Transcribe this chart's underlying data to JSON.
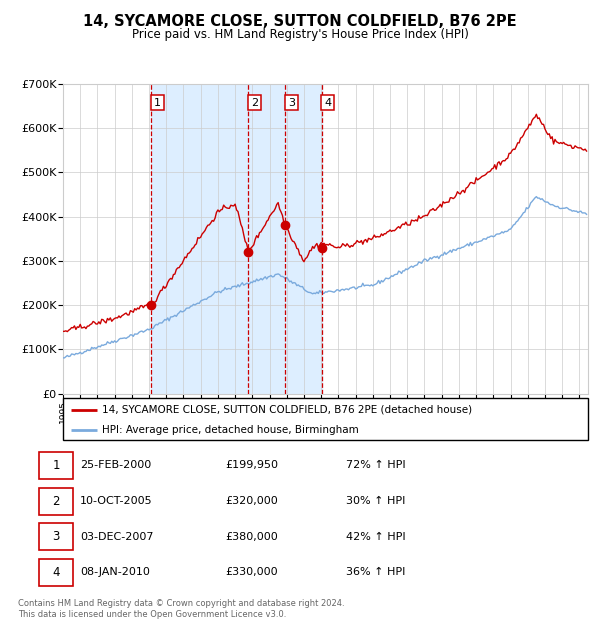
{
  "title": "14, SYCAMORE CLOSE, SUTTON COLDFIELD, B76 2PE",
  "subtitle": "Price paid vs. HM Land Registry's House Price Index (HPI)",
  "legend_label_red": "14, SYCAMORE CLOSE, SUTTON COLDFIELD, B76 2PE (detached house)",
  "legend_label_blue": "HPI: Average price, detached house, Birmingham",
  "footer_line1": "Contains HM Land Registry data © Crown copyright and database right 2024.",
  "footer_line2": "This data is licensed under the Open Government Licence v3.0.",
  "transactions": [
    {
      "num": 1,
      "date": "25-FEB-2000",
      "price": 199950,
      "hpi_pct": "72%",
      "direction": "↑"
    },
    {
      "num": 2,
      "date": "10-OCT-2005",
      "price": 320000,
      "hpi_pct": "30%",
      "direction": "↑"
    },
    {
      "num": 3,
      "date": "03-DEC-2007",
      "price": 380000,
      "hpi_pct": "42%",
      "direction": "↑"
    },
    {
      "num": 4,
      "date": "08-JAN-2010",
      "price": 330000,
      "hpi_pct": "36%",
      "direction": "↑"
    }
  ],
  "transaction_dates_decimal": [
    2000.14,
    2005.77,
    2007.92,
    2010.02
  ],
  "transaction_prices": [
    199950,
    320000,
    380000,
    330000
  ],
  "shade_region": [
    2000.14,
    2010.02
  ],
  "hpi_color": "#7aaadd",
  "price_color": "#cc0000",
  "shade_color": "#ddeeff",
  "vline_color": "#cc0000",
  "background_color": "#ffffff",
  "grid_color": "#cccccc",
  "ylim": [
    0,
    700000
  ],
  "xlim_start": 1995.0,
  "xlim_end": 2025.5
}
